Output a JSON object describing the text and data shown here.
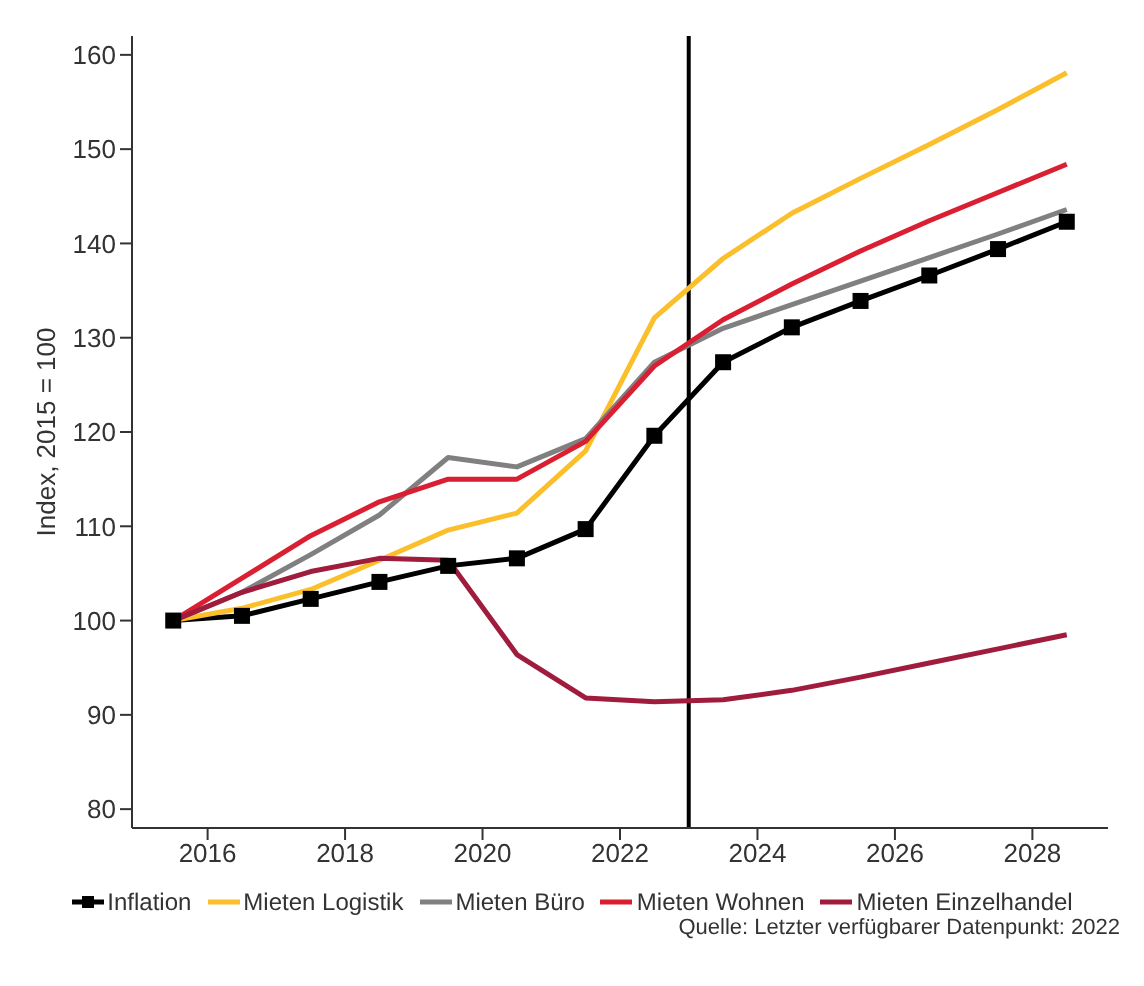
{
  "chart_data": {
    "type": "line",
    "ylabel": "Index, 2015 = 100",
    "x": [
      2015.5,
      2016.5,
      2017.5,
      2018.5,
      2019.5,
      2020.5,
      2021.5,
      2022.5,
      2023.5,
      2024.5,
      2025.5,
      2026.5,
      2027.5,
      2028.5
    ],
    "series": [
      {
        "name": "Inflation",
        "color": "#000000",
        "marker": "square",
        "values": [
          100,
          100.5,
          102.3,
          104.1,
          105.8,
          106.6,
          109.7,
          119.6,
          127.4,
          131.1,
          133.9,
          136.6,
          139.4,
          142.3
        ]
      },
      {
        "name": "Mieten Logistik",
        "color": "#fbbf2b",
        "marker": "none",
        "values": [
          100,
          101.3,
          103.3,
          106.4,
          109.6,
          111.4,
          118,
          132.1,
          138.4,
          143.2,
          146.9,
          150.5,
          154.2,
          158.1
        ]
      },
      {
        "name": "Mieten Büro",
        "color": "#808080",
        "marker": "none",
        "values": [
          100,
          103,
          107,
          111.2,
          117.3,
          116.3,
          119.3,
          127.4,
          131,
          133.5,
          136,
          138.5,
          141,
          143.6
        ]
      },
      {
        "name": "Mieten Wohnen",
        "color": "#d91f31",
        "marker": "none",
        "values": [
          100,
          104.5,
          109,
          112.6,
          115,
          115,
          119,
          127,
          131.9,
          135.7,
          139.2,
          142.4,
          145.4,
          148.4
        ]
      },
      {
        "name": "Mieten Einzelhandel",
        "color": "#a01c3c",
        "marker": "none",
        "values": [
          100,
          103,
          105.2,
          106.6,
          106.4,
          96.4,
          91.8,
          91.4,
          91.6,
          92.6,
          94,
          95.5,
          97,
          98.5
        ]
      }
    ],
    "xlim": [
      2014.9,
      2029.1
    ],
    "xticks": [
      2016,
      2018,
      2020,
      2022,
      2024,
      2026,
      2028
    ],
    "ylim": [
      78,
      162
    ],
    "yticks": [
      80,
      90,
      100,
      110,
      120,
      130,
      140,
      150,
      160
    ],
    "ref_lines": [
      {
        "axis": "x",
        "value": 2023,
        "color": "#000000"
      }
    ],
    "grid": false,
    "legend": "bottom",
    "line_style": "solid",
    "annotations": [
      "Quelle: Letzter verfügbarer Datenpunkt: 2022"
    ]
  }
}
